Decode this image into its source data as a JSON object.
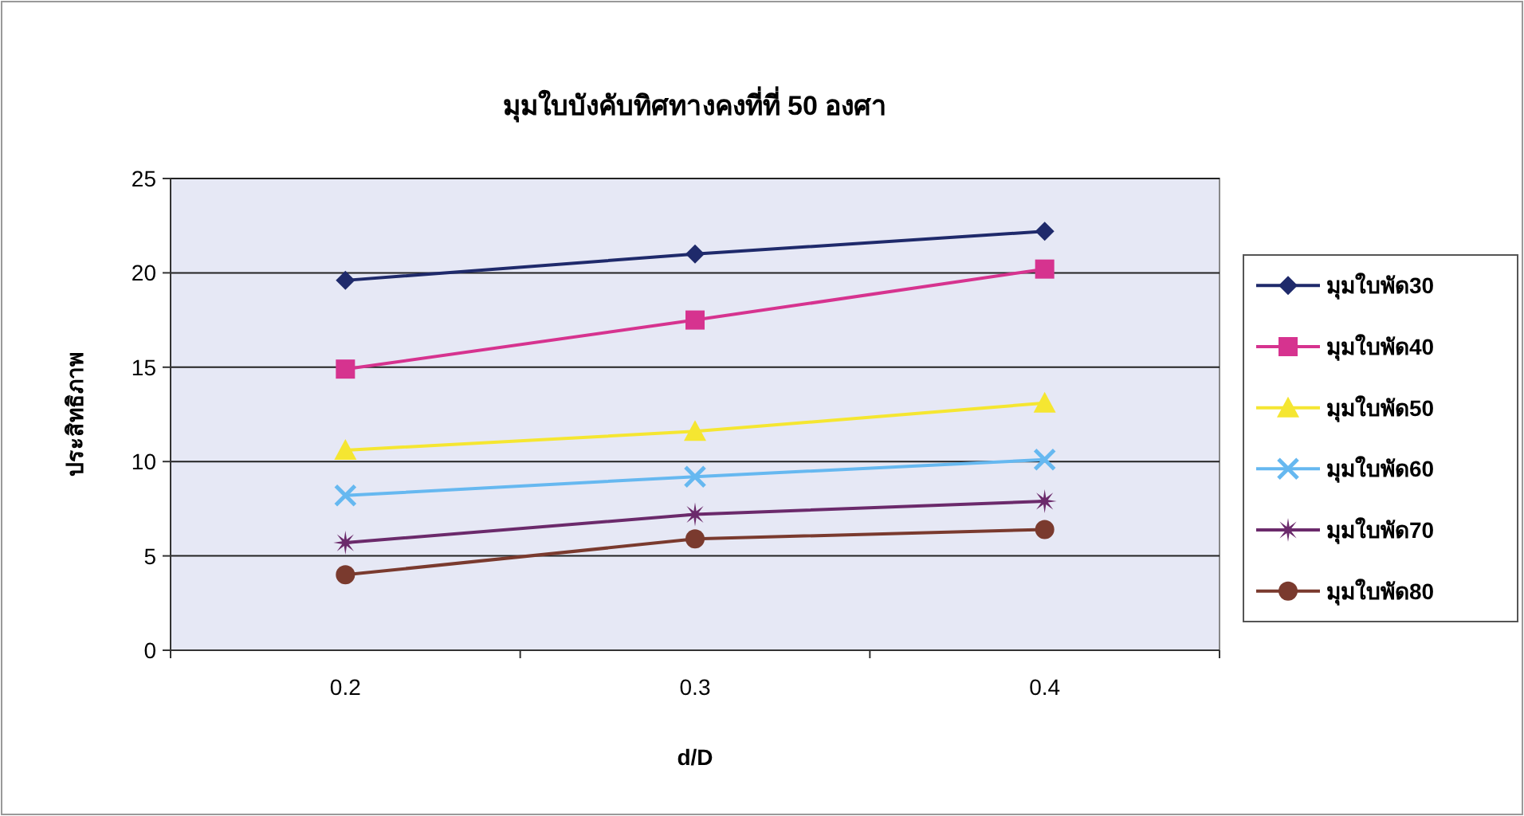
{
  "chart_data": {
    "type": "line",
    "title": "มุมใบบังคับทิศทางคงที่ที่ 50 องศา",
    "xlabel": "d/D",
    "ylabel": "ประสิทธิภาพ",
    "categories": [
      "0.2",
      "0.3",
      "0.4"
    ],
    "ylim": [
      0,
      25
    ],
    "yticks": [
      0,
      5,
      10,
      15,
      20,
      25
    ],
    "grid": "y",
    "legend": "right",
    "series": [
      {
        "name": "มุมใบพัด30",
        "color": "#1f2a6b",
        "marker": "diamond",
        "values": [
          19.6,
          21.0,
          22.2
        ]
      },
      {
        "name": "มุมใบพัด40",
        "color": "#d6338f",
        "marker": "square",
        "values": [
          14.9,
          17.5,
          20.2
        ]
      },
      {
        "name": "มุมใบพัด50",
        "color": "#f5e631",
        "marker": "triangle",
        "values": [
          10.6,
          11.6,
          13.1
        ]
      },
      {
        "name": "มุมใบพัด60",
        "color": "#66b8f0",
        "marker": "cross",
        "values": [
          8.2,
          9.2,
          10.1
        ]
      },
      {
        "name": "มุมใบพัด70",
        "color": "#6b2a6b",
        "marker": "star",
        "values": [
          5.7,
          7.2,
          7.9
        ]
      },
      {
        "name": "มุมใบพัด80",
        "color": "#7a3a2e",
        "marker": "circle",
        "values": [
          4.0,
          5.9,
          6.4
        ]
      }
    ]
  }
}
